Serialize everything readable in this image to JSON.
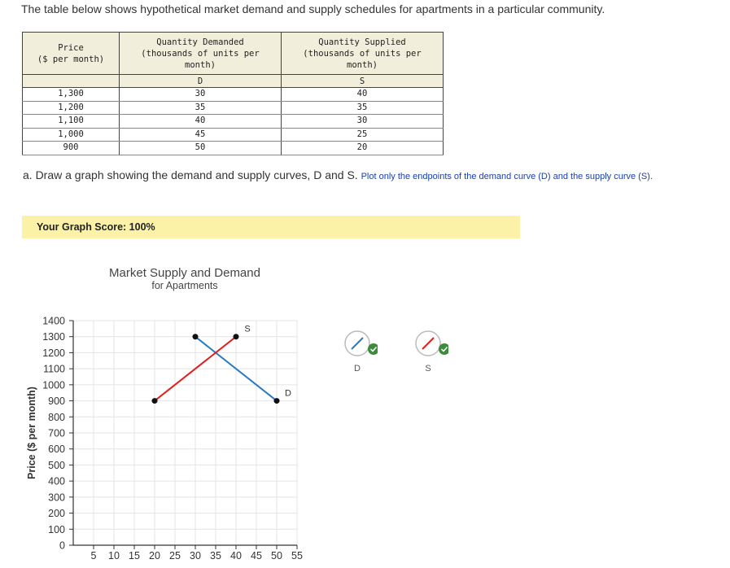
{
  "intro": "The table below shows hypothetical market demand and supply schedules for apartments in a particular community.",
  "table": {
    "headers": [
      [
        "Price",
        "($ per month)"
      ],
      [
        "Quantity Demanded",
        "(thousands of units per",
        "month)"
      ],
      [
        "Quantity Supplied",
        "(thousands of units per",
        "month)"
      ]
    ],
    "subheaders": [
      "",
      "D",
      "S"
    ],
    "rows": [
      [
        "1,300",
        "30",
        "40"
      ],
      [
        "1,200",
        "35",
        "35"
      ],
      [
        "1,100",
        "40",
        "30"
      ],
      [
        "1,000",
        "45",
        "25"
      ],
      [
        "900",
        "50",
        "20"
      ]
    ]
  },
  "question": {
    "text": "a. Draw a graph showing the demand and supply curves, D and S.",
    "hint": "Plot only the endpoints of the demand curve (D) and the supply curve (S)."
  },
  "score": {
    "label": "Your Graph Score: 100%"
  },
  "chart_data": {
    "type": "line",
    "title": "Market Supply and Demand",
    "subtitle": "for Apartments",
    "xlabel": "",
    "ylabel": "Price ($ per month)",
    "xlim": [
      0,
      55
    ],
    "ylim": [
      0,
      1400
    ],
    "xticks": [
      5,
      10,
      15,
      20,
      25,
      30,
      35,
      40,
      45,
      50,
      55
    ],
    "yticks": [
      0,
      100,
      200,
      300,
      400,
      500,
      600,
      700,
      800,
      900,
      1000,
      1100,
      1200,
      1300,
      1400
    ],
    "grid": true,
    "series": [
      {
        "name": "D",
        "color": "#2a7ac0",
        "points": [
          [
            30,
            1300
          ],
          [
            50,
            900
          ]
        ]
      },
      {
        "name": "S",
        "color": "#e02020",
        "points": [
          [
            20,
            900
          ],
          [
            40,
            1300
          ]
        ]
      }
    ]
  },
  "legend": {
    "items": [
      {
        "label": "D",
        "color": "#2a7ac0",
        "icon": "demand-line-tool-icon"
      },
      {
        "label": "S",
        "color": "#e02020",
        "icon": "supply-line-tool-icon"
      }
    ],
    "check_color": "#3d8b3d"
  }
}
